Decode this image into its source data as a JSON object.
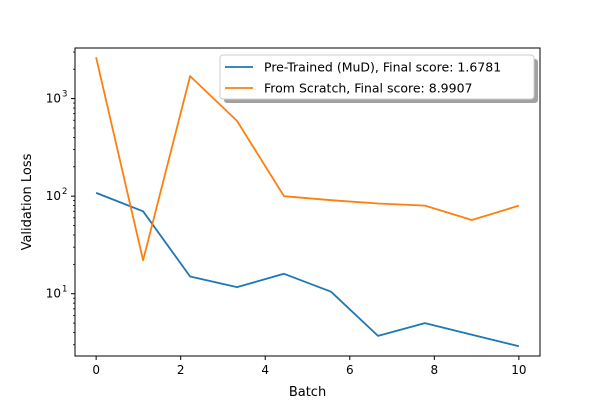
{
  "chart_data": {
    "type": "line",
    "xlabel": "Batch",
    "ylabel": "Validation Loss",
    "yscale": "log",
    "xlim": [
      -0.5,
      10.5
    ],
    "ylim": [
      2.3,
      3300
    ],
    "x_ticks": [
      0,
      2,
      4,
      6,
      8,
      10
    ],
    "x_tick_labels": [
      "0",
      "2",
      "4",
      "6",
      "8",
      "10"
    ],
    "y_ticks": [
      10,
      100,
      1000
    ],
    "y_tick_labels": [
      "10",
      "10",
      "10"
    ],
    "y_tick_exponents": [
      "1",
      "2",
      "3"
    ],
    "grid": false,
    "legend_position": "upper-right",
    "x": [
      0,
      1.111,
      2.222,
      3.333,
      4.444,
      5.556,
      6.667,
      7.778,
      8.889,
      10
    ],
    "series": [
      {
        "name": "Pre-Trained (MuD), Final score: 1.6781",
        "color": "#1f77b4",
        "values": [
          108,
          70,
          15,
          11.7,
          16,
          10.5,
          3.7,
          5.0,
          3.8,
          2.9
        ]
      },
      {
        "name": "From Scratch, Final score: 8.9907",
        "color": "#ff7f0e",
        "values": [
          2650,
          22,
          1700,
          590,
          100,
          91,
          84,
          80,
          57,
          80
        ]
      }
    ]
  }
}
